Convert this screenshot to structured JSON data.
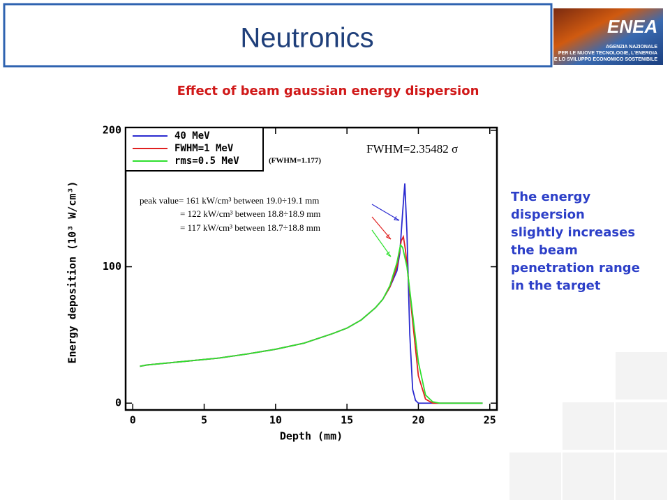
{
  "header": {
    "title": "Neutronics"
  },
  "logo": {
    "name": "ENEA",
    "lines": [
      "AGENZIA NAZIONALE",
      "PER LE NUOVE TECNOLOGIE, L'ENERGIA",
      "E LO SVILUPPO ECONOMICO SOSTENIBILE"
    ]
  },
  "subtitle": "Effect of beam gaussian energy dispersion",
  "side_text": [
    "The energy",
    "dispersion",
    "slightly increases",
    "the beam",
    "penetration range",
    "in the target"
  ],
  "chart_data": {
    "type": "line",
    "x_label": "Depth (mm)",
    "y_label": "Energy deposition (10³ W/cm³)",
    "xlim": [
      -0.5,
      25.5
    ],
    "ylim": [
      -5,
      202
    ],
    "xticks": [
      0,
      5,
      10,
      15,
      20,
      25
    ],
    "yticks": [
      0,
      100,
      200
    ],
    "legend": "top-left",
    "annotations": [
      "FWHM=2.35482 σ",
      "(FWHM=1.177)",
      "peak value= 161 kW/cm³ between 19.0÷19.1 mm",
      "= 122 kW/cm³ between 18.8÷18.9 mm",
      "= 117 kW/cm³ between 18.7÷18.8 mm"
    ],
    "series": [
      {
        "name": "40 MeV",
        "color": "#2a2ad0",
        "x": [
          0.5,
          1,
          2,
          4,
          6,
          8,
          10,
          12,
          14,
          15,
          16,
          17,
          17.5,
          18,
          18.5,
          18.7,
          18.9,
          19.05,
          19.2,
          19.4,
          19.6,
          19.8,
          20,
          24.5
        ],
        "values": [
          27,
          28,
          29,
          31,
          33,
          36,
          39.5,
          44,
          51,
          55,
          61,
          70,
          76,
          85,
          97,
          110,
          140,
          161,
          125,
          50,
          10,
          2,
          0,
          0
        ]
      },
      {
        "name": "FWHM=1 MeV",
        "color": "#e02020",
        "x": [
          0.5,
          1,
          2,
          4,
          6,
          8,
          10,
          12,
          14,
          15,
          16,
          17,
          17.5,
          18,
          18.5,
          18.8,
          18.95,
          19.1,
          19.5,
          20,
          20.5,
          21,
          24.5
        ],
        "values": [
          27,
          28,
          29,
          31,
          33,
          36,
          39.5,
          44,
          51,
          55,
          61,
          70,
          76,
          85,
          100,
          119,
          122,
          112,
          70,
          20,
          3,
          0,
          0
        ]
      },
      {
        "name": "rms=0.5 MeV",
        "color": "#2ee02e",
        "x": [
          0.5,
          1,
          2,
          4,
          6,
          8,
          10,
          12,
          14,
          15,
          16,
          17,
          17.5,
          18,
          18.5,
          18.75,
          18.9,
          19.2,
          19.6,
          20,
          20.5,
          21,
          21.5,
          24.5
        ],
        "values": [
          27,
          28,
          29,
          31,
          33,
          36,
          39.5,
          44,
          51,
          55,
          61,
          70,
          76,
          86,
          103,
          116,
          114,
          100,
          65,
          30,
          6,
          1,
          0,
          0
        ]
      }
    ]
  }
}
